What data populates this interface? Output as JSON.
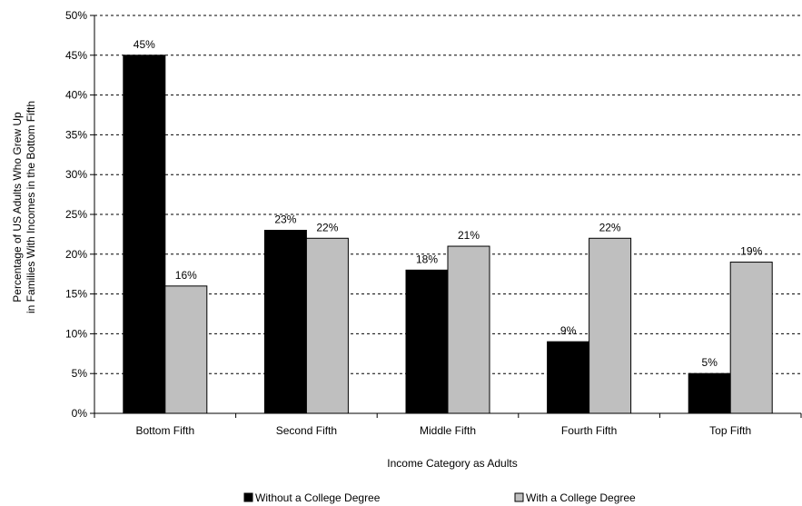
{
  "chart_data": {
    "type": "bar",
    "categories": [
      "Bottom Fifth",
      "Second Fifth",
      "Middle Fifth",
      "Fourth Fifth",
      "Top Fifth"
    ],
    "series": [
      {
        "name": "Without a College Degree",
        "values": [
          45,
          23,
          18,
          9,
          5
        ],
        "labels": [
          "45%",
          "23%",
          "18%",
          "9%",
          "5%"
        ],
        "color": "#000000"
      },
      {
        "name": "With a College Degree",
        "values": [
          16,
          22,
          21,
          22,
          19
        ],
        "labels": [
          "16%",
          "22%",
          "21%",
          "22%",
          "19%"
        ],
        "color": "#bfbfbf"
      }
    ],
    "ylim": [
      0,
      50
    ],
    "yticks": [
      0,
      5,
      10,
      15,
      20,
      25,
      30,
      35,
      40,
      45,
      50
    ],
    "ytick_labels": [
      "0%",
      "5%",
      "10%",
      "15%",
      "20%",
      "25%",
      "30%",
      "35%",
      "40%",
      "45%",
      "50%"
    ],
    "ylabel_lines": [
      "Percentage of US Adults Who Grew Up",
      "in Families With Incomes in the Bottom Fifth"
    ],
    "xlabel": "Income Category as Adults",
    "grid": "horizontal dashed",
    "legend_position": "bottom"
  }
}
